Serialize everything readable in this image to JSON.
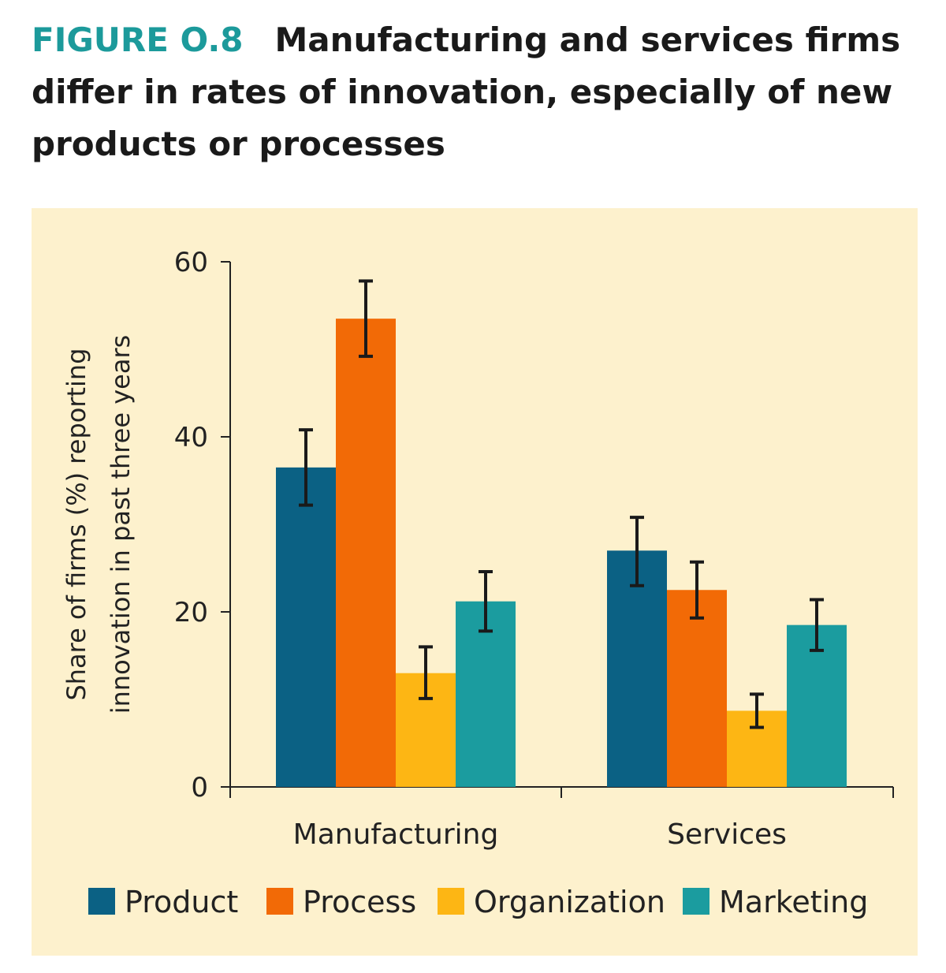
{
  "figure": {
    "label": "FIGURE O.8",
    "title": "Manufacturing and services firms differ in rates of innovation, especially of new products or processes"
  },
  "chart_data": {
    "type": "bar",
    "title": "Manufacturing and services firms differ in rates of innovation, especially of new products or processes",
    "categories": [
      "Manufacturing",
      "Services"
    ],
    "series": [
      {
        "name": "Product",
        "color": "#0b6184",
        "values": [
          36.5,
          27.0
        ],
        "error_low": [
          32.2,
          23.0
        ],
        "error_high": [
          40.8,
          30.8
        ]
      },
      {
        "name": "Process",
        "color": "#f26a06",
        "values": [
          53.5,
          22.5
        ],
        "error_low": [
          49.2,
          19.3
        ],
        "error_high": [
          57.8,
          25.7
        ]
      },
      {
        "name": "Organization",
        "color": "#fdb614",
        "values": [
          13.0,
          8.7
        ],
        "error_low": [
          10.1,
          6.8
        ],
        "error_high": [
          16.0,
          10.6
        ]
      },
      {
        "name": "Marketing",
        "color": "#1b9c9f",
        "values": [
          21.2,
          18.5
        ],
        "error_low": [
          17.8,
          15.6
        ],
        "error_high": [
          24.6,
          21.4
        ]
      }
    ],
    "ylim": [
      0,
      60
    ],
    "yticks": [
      0,
      20,
      40,
      60
    ],
    "xlabel": "",
    "ylabel": [
      "Share of firms (%) reporting",
      "innovation in past three years"
    ],
    "legend_position": "bottom"
  }
}
